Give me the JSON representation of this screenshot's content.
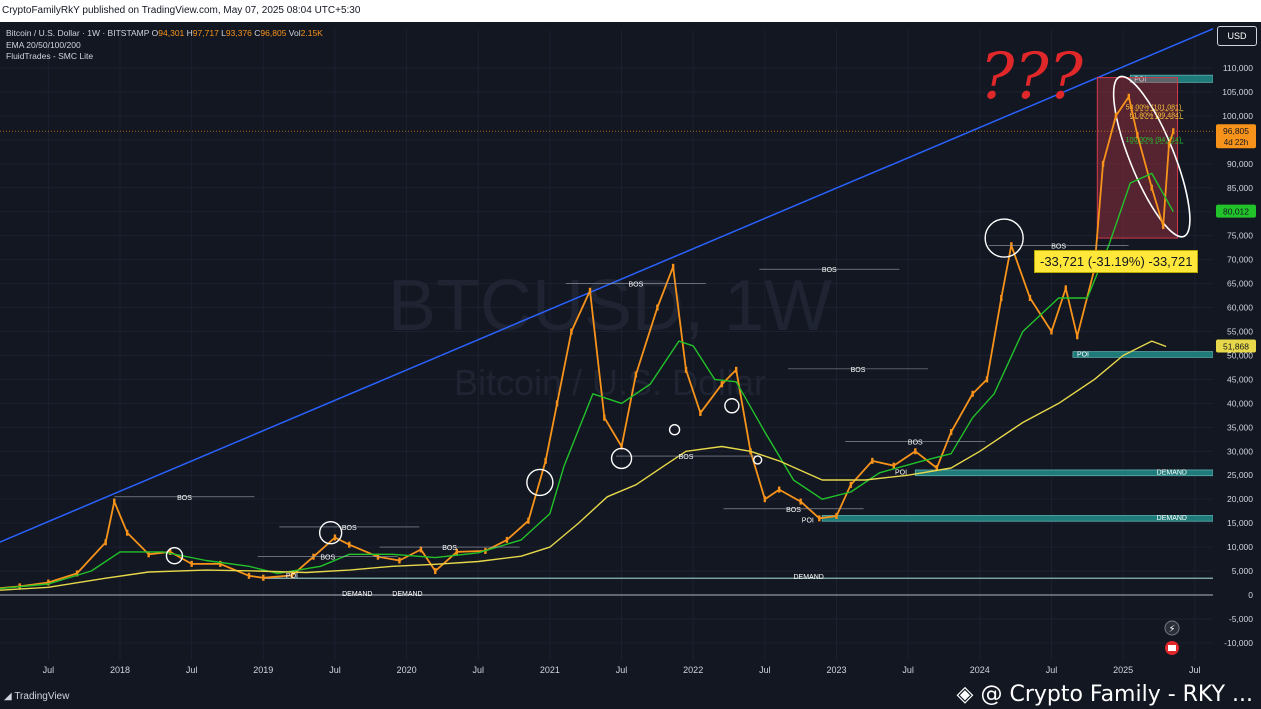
{
  "header": {
    "published_line": "CryptoFamilyRkY published on TradingView.com, May 07, 2025 08:04 UTC+5:30"
  },
  "legend": {
    "symbol_line": "Bitcoin / U.S. Dollar · 1W · BITSTAMP",
    "o_label": "O",
    "o_value": "94,301",
    "h_label": "H",
    "h_value": "97,717",
    "l_label": "L",
    "l_value": "93,376",
    "c_label": "C",
    "c_value": "96,805",
    "vol_label": "Vol",
    "vol_value": "2.15K",
    "indicator_ema": "EMA 20/50/100/200",
    "indicator_smc": "FluidTrades - SMC Lite"
  },
  "usd_button": "USD",
  "change_box": "-33,721 (-31.19%) -33,721",
  "question_marks": "???",
  "footer": {
    "brand": "TradingView",
    "watermark": "@ Crypto Family - RKY ..."
  },
  "colors": {
    "background": "#131722",
    "ema_green": "#22c22a",
    "ema_yellow": "#e6d84a",
    "trendline": "#2962ff",
    "candles": "#f7931a",
    "demand_zone": "#1f7a7a",
    "red_box": "#d43a4a"
  },
  "chart_data": {
    "type": "line",
    "title": "",
    "watermark_symbol": "BTCUSD, 1W",
    "watermark_name": "Bitcoin / U.S. Dollar",
    "ylim": [
      -14000,
      118000
    ],
    "y_ticks": [
      110000,
      105000,
      100000,
      95000,
      90000,
      85000,
      80000,
      75000,
      70000,
      65000,
      60000,
      55000,
      50000,
      45000,
      40000,
      35000,
      30000,
      25000,
      20000,
      15000,
      10000,
      5000,
      0,
      -5000,
      -10000
    ],
    "y_tick_labels": [
      "110,000",
      "105,000",
      "100,000",
      "95,000",
      "90,000",
      "85,000",
      "80,000",
      "75,000",
      "70,000",
      "65,000",
      "60,000",
      "55,000",
      "50,000",
      "45,000",
      "40,000",
      "35,000",
      "30,000",
      "25,000",
      "20,000",
      "15,000",
      "10,000",
      "5,000",
      "0",
      "-5,000",
      "-10,000"
    ],
    "x_range": [
      2017.0,
      2025.85
    ],
    "x_ticks": [
      {
        "t": 2017.5,
        "label": "Jul"
      },
      {
        "t": 2018.0,
        "label": "2018"
      },
      {
        "t": 2018.5,
        "label": "Jul"
      },
      {
        "t": 2019.0,
        "label": "2019"
      },
      {
        "t": 2019.5,
        "label": "Jul"
      },
      {
        "t": 2020.0,
        "label": "2020"
      },
      {
        "t": 2020.5,
        "label": "Jul"
      },
      {
        "t": 2021.0,
        "label": "2021"
      },
      {
        "t": 2021.5,
        "label": "Jul"
      },
      {
        "t": 2022.0,
        "label": "2022"
      },
      {
        "t": 2022.5,
        "label": "Jul"
      },
      {
        "t": 2023.0,
        "label": "2023"
      },
      {
        "t": 2023.5,
        "label": "Jul"
      },
      {
        "t": 2024.0,
        "label": "2024"
      },
      {
        "t": 2024.5,
        "label": "Jul"
      },
      {
        "t": 2025.0,
        "label": "2025"
      },
      {
        "t": 2025.5,
        "label": "Jul"
      }
    ],
    "series": [
      {
        "name": "BTCUSD",
        "color": "#f7931a",
        "points": [
          [
            2017.0,
            1000
          ],
          [
            2017.3,
            1800
          ],
          [
            2017.5,
            2600
          ],
          [
            2017.7,
            4500
          ],
          [
            2017.9,
            11000
          ],
          [
            2017.96,
            19500
          ],
          [
            2018.05,
            13000
          ],
          [
            2018.2,
            8500
          ],
          [
            2018.35,
            9000
          ],
          [
            2018.5,
            6500
          ],
          [
            2018.7,
            6500
          ],
          [
            2018.9,
            4000
          ],
          [
            2019.0,
            3600
          ],
          [
            2019.2,
            4100
          ],
          [
            2019.35,
            8000
          ],
          [
            2019.5,
            12000
          ],
          [
            2019.6,
            10500
          ],
          [
            2019.8,
            8000
          ],
          [
            2019.95,
            7200
          ],
          [
            2020.1,
            9500
          ],
          [
            2020.2,
            5000
          ],
          [
            2020.35,
            9000
          ],
          [
            2020.55,
            9200
          ],
          [
            2020.7,
            11500
          ],
          [
            2020.85,
            15500
          ],
          [
            2020.97,
            28000
          ],
          [
            2021.05,
            40000
          ],
          [
            2021.15,
            55000
          ],
          [
            2021.28,
            63500
          ],
          [
            2021.38,
            37000
          ],
          [
            2021.5,
            31000
          ],
          [
            2021.6,
            46000
          ],
          [
            2021.75,
            60000
          ],
          [
            2021.86,
            68500
          ],
          [
            2021.95,
            47000
          ],
          [
            2022.05,
            38000
          ],
          [
            2022.2,
            44000
          ],
          [
            2022.3,
            47000
          ],
          [
            2022.4,
            30000
          ],
          [
            2022.5,
            20000
          ],
          [
            2022.6,
            22000
          ],
          [
            2022.75,
            19500
          ],
          [
            2022.88,
            16000
          ],
          [
            2023.0,
            16500
          ],
          [
            2023.1,
            23000
          ],
          [
            2023.25,
            28000
          ],
          [
            2023.4,
            27000
          ],
          [
            2023.55,
            30000
          ],
          [
            2023.7,
            26500
          ],
          [
            2023.8,
            34000
          ],
          [
            2023.95,
            42000
          ],
          [
            2024.05,
            45000
          ],
          [
            2024.15,
            62000
          ],
          [
            2024.22,
            73000
          ],
          [
            2024.35,
            62000
          ],
          [
            2024.5,
            55000
          ],
          [
            2024.6,
            64000
          ],
          [
            2024.68,
            54000
          ],
          [
            2024.8,
            68000
          ],
          [
            2024.86,
            90000
          ],
          [
            2024.95,
            100000
          ],
          [
            2025.04,
            104000
          ],
          [
            2025.1,
            96000
          ],
          [
            2025.2,
            85000
          ],
          [
            2025.28,
            77000
          ],
          [
            2025.32,
            94000
          ],
          [
            2025.35,
            96805
          ]
        ]
      },
      {
        "name": "EMA 20",
        "color": "#22c22a",
        "points": [
          [
            2017.0,
            900
          ],
          [
            2017.5,
            2300
          ],
          [
            2017.8,
            5000
          ],
          [
            2018.0,
            9000
          ],
          [
            2018.3,
            9000
          ],
          [
            2018.6,
            7200
          ],
          [
            2018.9,
            6000
          ],
          [
            2019.1,
            4500
          ],
          [
            2019.4,
            6000
          ],
          [
            2019.6,
            8500
          ],
          [
            2019.9,
            8500
          ],
          [
            2020.2,
            7800
          ],
          [
            2020.5,
            8800
          ],
          [
            2020.8,
            11500
          ],
          [
            2021.0,
            17000
          ],
          [
            2021.1,
            27000
          ],
          [
            2021.3,
            42000
          ],
          [
            2021.5,
            40000
          ],
          [
            2021.7,
            44000
          ],
          [
            2021.9,
            53000
          ],
          [
            2022.0,
            52000
          ],
          [
            2022.15,
            45000
          ],
          [
            2022.3,
            44500
          ],
          [
            2022.5,
            34000
          ],
          [
            2022.7,
            24000
          ],
          [
            2022.9,
            20000
          ],
          [
            2023.1,
            21500
          ],
          [
            2023.3,
            25500
          ],
          [
            2023.6,
            28000
          ],
          [
            2023.8,
            29500
          ],
          [
            2023.95,
            37000
          ],
          [
            2024.1,
            42000
          ],
          [
            2024.3,
            55000
          ],
          [
            2024.55,
            62000
          ],
          [
            2024.75,
            62000
          ],
          [
            2024.9,
            73000
          ],
          [
            2025.05,
            86000
          ],
          [
            2025.2,
            88000
          ],
          [
            2025.35,
            80012
          ]
        ]
      },
      {
        "name": "EMA 50",
        "color": "#e6d84a",
        "points": [
          [
            2017.0,
            700
          ],
          [
            2017.5,
            1600
          ],
          [
            2017.9,
            3500
          ],
          [
            2018.2,
            4800
          ],
          [
            2018.6,
            5200
          ],
          [
            2018.95,
            5000
          ],
          [
            2019.3,
            4700
          ],
          [
            2019.6,
            5200
          ],
          [
            2019.9,
            6000
          ],
          [
            2020.2,
            6400
          ],
          [
            2020.5,
            7000
          ],
          [
            2020.8,
            8100
          ],
          [
            2021.0,
            10000
          ],
          [
            2021.2,
            15000
          ],
          [
            2021.4,
            20500
          ],
          [
            2021.6,
            23000
          ],
          [
            2021.8,
            27000
          ],
          [
            2021.95,
            30000
          ],
          [
            2022.2,
            31000
          ],
          [
            2022.4,
            30000
          ],
          [
            2022.6,
            28000
          ],
          [
            2022.9,
            24000
          ],
          [
            2023.2,
            24000
          ],
          [
            2023.5,
            25000
          ],
          [
            2023.8,
            26500
          ],
          [
            2024.0,
            30000
          ],
          [
            2024.3,
            36000
          ],
          [
            2024.55,
            40000
          ],
          [
            2024.8,
            45000
          ],
          [
            2025.0,
            50000
          ],
          [
            2025.2,
            53000
          ],
          [
            2025.3,
            51868
          ]
        ]
      }
    ],
    "trendline": {
      "color": "#2962ff",
      "from": [
        2017.0,
        9000
      ],
      "to": [
        2025.85,
        121000
      ]
    },
    "zones": [
      {
        "label": "DEMAND",
        "from": 2022.9,
        "to": 2025.85,
        "y0": 15400,
        "y1": 16600
      },
      {
        "label": "DEMAND",
        "from": 2023.55,
        "to": 2025.85,
        "y0": 24900,
        "y1": 26100
      },
      {
        "label": "POI",
        "from": 2024.65,
        "to": 2025.85,
        "y0": 49600,
        "y1": 50800
      },
      {
        "label": "POI",
        "from": 2025.05,
        "to": 2025.85,
        "y0": 107000,
        "y1": 108500
      }
    ],
    "price_labels": [
      {
        "value": 96805,
        "text": "96,805",
        "sub": "4d 22h",
        "bg": "#f7931a"
      },
      {
        "value": 80012,
        "text": "80,012",
        "bg": "#22c22a"
      },
      {
        "value": 51868,
        "text": "51,868",
        "bg": "#e6d84a"
      }
    ],
    "fib_levels": [
      {
        "value": 101081,
        "text": "50.00% (101,081)"
      },
      {
        "value": 99484,
        "text": "61.80% (99,484)"
      },
      {
        "value": 94314,
        "text": "100.00% (94,314)"
      }
    ],
    "bos_annotations": [
      {
        "t": 2018.45,
        "y": 20500,
        "label": "BOS"
      },
      {
        "t": 2019.6,
        "y": 14200,
        "label": "BOS"
      },
      {
        "t": 2019.45,
        "y": 8000,
        "label": "BOS"
      },
      {
        "t": 2020.3,
        "y": 10000,
        "label": "BOS"
      },
      {
        "t": 2021.6,
        "y": 65000,
        "label": "BOS"
      },
      {
        "t": 2021.95,
        "y": 29000,
        "label": "BOS"
      },
      {
        "t": 2022.95,
        "y": 68000,
        "label": "BOS"
      },
      {
        "t": 2023.15,
        "y": 47200,
        "label": "BOS"
      },
      {
        "t": 2023.55,
        "y": 32000,
        "label": "BOS"
      },
      {
        "t": 2024.55,
        "y": 73000,
        "label": "BOS"
      },
      {
        "t": 2022.7,
        "y": 18000,
        "label": "BOS"
      },
      {
        "t": 2019.2,
        "y": 4200,
        "label": "POI"
      },
      {
        "t": 2023.45,
        "y": 25800,
        "label": "POI"
      },
      {
        "t": 2022.8,
        "y": 15800,
        "label": "POI"
      }
    ],
    "demand_lines": [
      {
        "label": "DEMAND",
        "t": 2019.55,
        "y": 0
      },
      {
        "label": "DEMAND",
        "t": 2019.9,
        "y": 0
      },
      {
        "label": "DEMAND",
        "t": 2022.7,
        "y": 3500
      }
    ]
  }
}
